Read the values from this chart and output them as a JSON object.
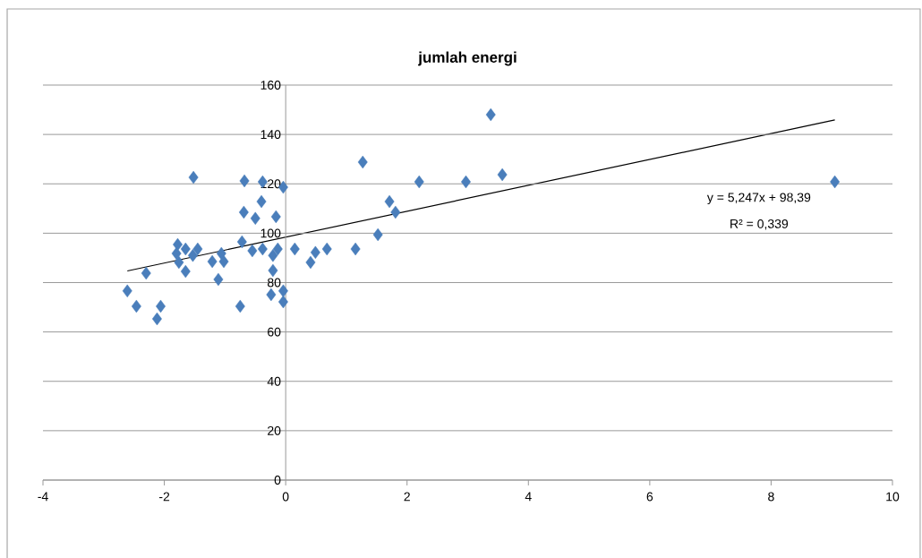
{
  "chart_data": {
    "type": "scatter",
    "title": "jumlah energi",
    "x": [
      -2.61,
      -2.46,
      -2.3,
      -2.12,
      -2.06,
      -1.78,
      -1.8,
      -1.65,
      -1.76,
      -1.65,
      -1.53,
      -1.45,
      -1.52,
      -1.21,
      -1.06,
      -1.02,
      -1.11,
      -0.75,
      -0.69,
      -0.68,
      -0.38,
      -0.4,
      -0.5,
      -0.55,
      -0.72,
      -0.38,
      -0.16,
      -0.04,
      -0.13,
      -0.21,
      -0.21,
      -0.24,
      -0.04,
      -0.04,
      0.15,
      0.41,
      0.49,
      0.68,
      1.15,
      1.27,
      1.52,
      1.71,
      1.81,
      2.2,
      2.97,
      3.38,
      3.57,
      9.05
    ],
    "series": [
      {
        "color": "#4a7ebb",
        "marker": "diamond",
        "values": [
          76.6,
          70.4,
          83.8,
          65.3,
          70.4,
          95.4,
          91.8,
          93.6,
          88.2,
          84.5,
          91,
          93.6,
          122.6,
          88.5,
          91.8,
          88.5,
          81.3,
          70.4,
          108.5,
          121.2,
          120.8,
          112.8,
          106,
          92.9,
          96.5,
          93.6,
          106.7,
          118.6,
          93.6,
          91,
          84.9,
          75.1,
          76.6,
          72.2,
          93.6,
          88.2,
          92.2,
          93.6,
          93.6,
          128.8,
          99.4,
          112.8,
          108.5,
          120.8,
          120.8,
          148,
          123.7,
          120.8
        ]
      },
      {
        "type": "line",
        "color": "#000000",
        "marker": "none",
        "x": [
          -2.61,
          9.05
        ],
        "values": [
          84.7,
          145.9
        ]
      }
    ],
    "annotations": [
      "y = 5,247x + 98,39",
      "R² = 0,339"
    ],
    "xlim": [
      -4,
      10
    ],
    "xticks": [
      -4,
      -2,
      0,
      2,
      4,
      6,
      8,
      10
    ],
    "ylim": [
      0,
      160
    ],
    "yticks": [
      0,
      20,
      40,
      60,
      80,
      100,
      120,
      140,
      160
    ],
    "grid": "y"
  }
}
